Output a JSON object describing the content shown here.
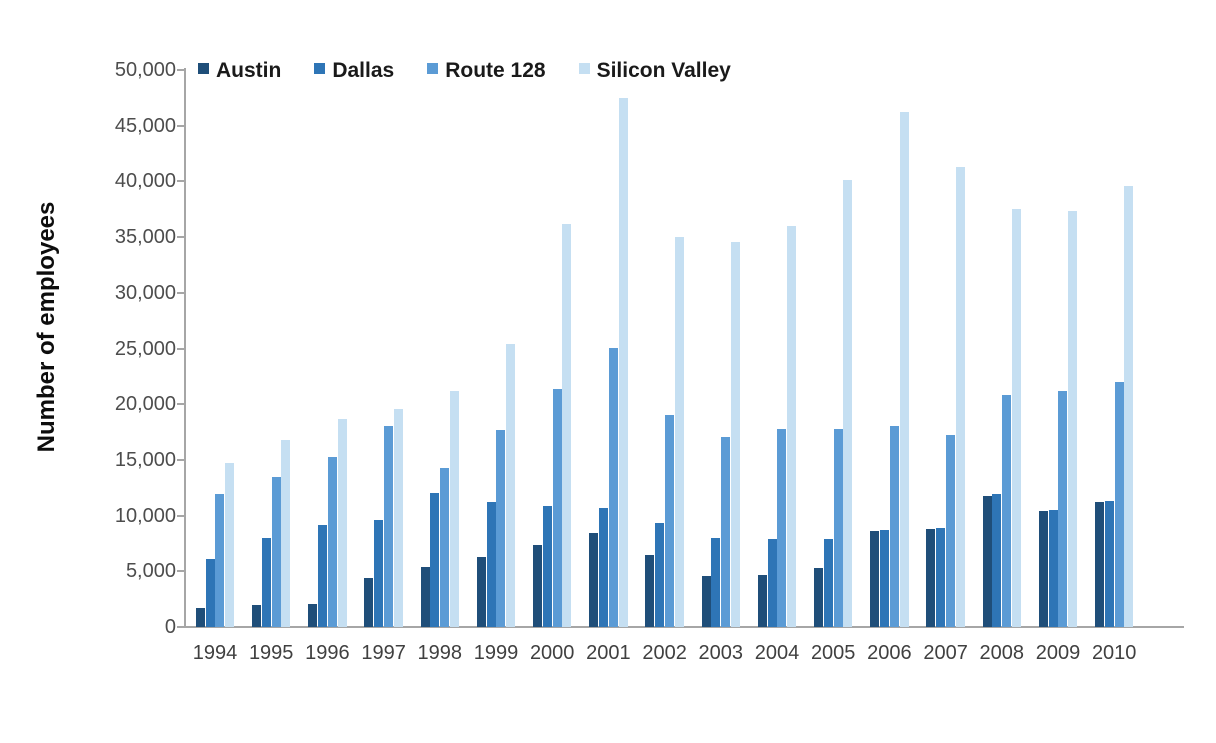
{
  "chart_data": {
    "type": "bar",
    "title": "",
    "xlabel": "",
    "ylabel": "Number of employees",
    "ylim": [
      0,
      50000
    ],
    "ytick_step": 5000,
    "grid": false,
    "legend_position": "top-left-inside",
    "categories": [
      "1994",
      "1995",
      "1996",
      "1997",
      "1998",
      "1999",
      "2000",
      "2001",
      "2002",
      "2003",
      "2004",
      "2005",
      "2006",
      "2007",
      "2008",
      "2009",
      "2010"
    ],
    "series": [
      {
        "name": "Austin",
        "color": "#1F4E79",
        "values": [
          1700,
          2000,
          2100,
          4400,
          5400,
          6300,
          7400,
          8400,
          6500,
          4600,
          4700,
          5300,
          8600,
          8800,
          11800,
          10400,
          11200
        ]
      },
      {
        "name": "Dallas",
        "color": "#2E75B6",
        "values": [
          6100,
          8000,
          9200,
          9600,
          12000,
          11200,
          10900,
          10700,
          9300,
          8000,
          7900,
          7900,
          8700,
          8900,
          11900,
          10500,
          11300
        ]
      },
      {
        "name": "Route 128",
        "color": "#5B9BD5",
        "values": [
          11900,
          13500,
          15300,
          18000,
          14300,
          17700,
          21400,
          25000,
          19000,
          17100,
          17800,
          17800,
          18000,
          17200,
          20800,
          21200,
          22000
        ]
      },
      {
        "name": "Silicon Valley",
        "color": "#C5DFF2",
        "values": [
          14700,
          16800,
          18700,
          19600,
          21200,
          25400,
          36200,
          47500,
          35000,
          34600,
          36000,
          40100,
          46200,
          41300,
          37500,
          37300,
          39600
        ]
      }
    ]
  },
  "axis_style": {
    "line_color": "#a6a6a6",
    "y_label_color": "#4d4d4d",
    "x_label_color": "#404040"
  }
}
